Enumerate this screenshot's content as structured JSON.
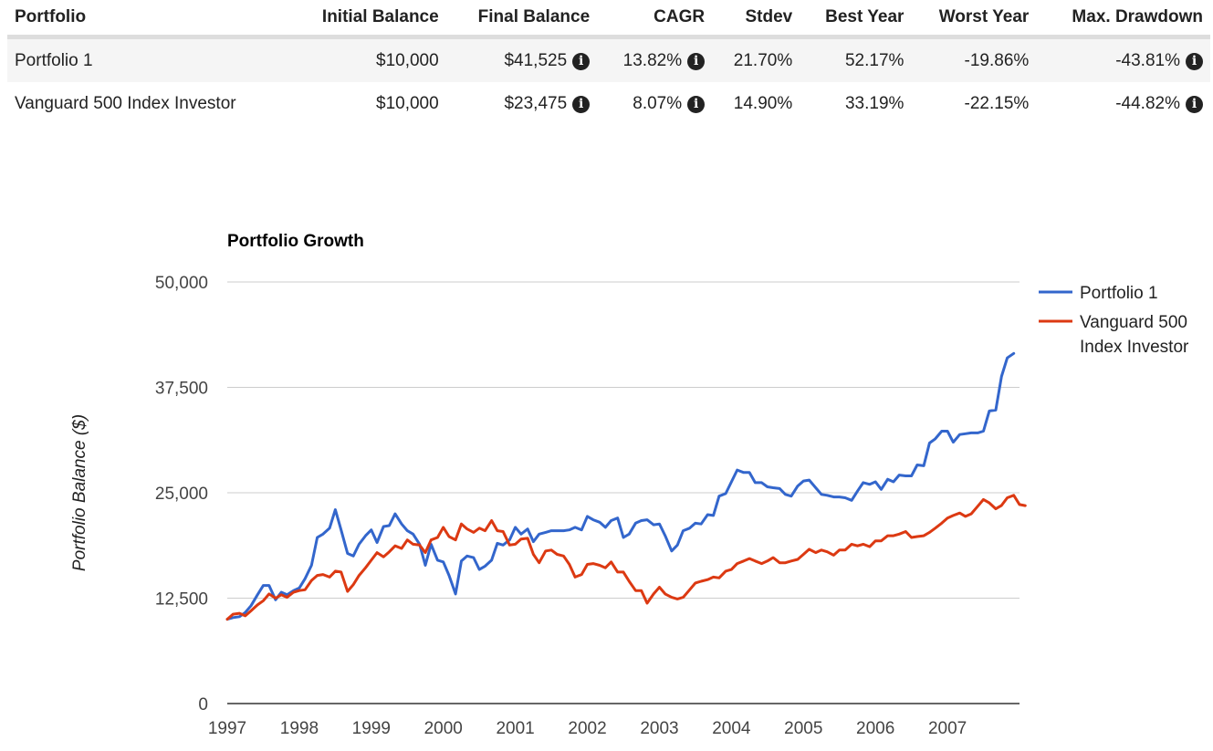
{
  "table": {
    "headers": [
      "Portfolio",
      "Initial Balance",
      "Final Balance",
      "CAGR",
      "Stdev",
      "Best Year",
      "Worst Year",
      "Max. Drawdown"
    ],
    "rows": [
      {
        "portfolio": "Portfolio 1",
        "initial_balance": "$10,000",
        "final_balance": "$41,525",
        "cagr": "13.82%",
        "stdev": "21.70%",
        "best_year": "52.17%",
        "worst_year": "-19.86%",
        "max_drawdown": "-43.81%"
      },
      {
        "portfolio": "Vanguard 500 Index Investor",
        "initial_balance": "$10,000",
        "final_balance": "$23,475",
        "cagr": "8.07%",
        "stdev": "14.90%",
        "best_year": "33.19%",
        "worst_year": "-22.15%",
        "max_drawdown": "-44.82%"
      }
    ],
    "info_icon": "info-circle-icon"
  },
  "colors": {
    "portfolio1": "#3366cc",
    "vanguard": "#dc3912",
    "grid": "#cccccc",
    "axis": "#333333"
  },
  "chart_data": {
    "type": "line",
    "title": "Portfolio Growth",
    "xlabel": "",
    "ylabel": "Portfolio Balance ($)",
    "ylim": [
      0,
      50000
    ],
    "xlim": [
      1997,
      2008
    ],
    "yticks": [
      0,
      12500,
      25000,
      37500,
      50000
    ],
    "ytick_labels": [
      "0",
      "12,500",
      "25,000",
      "37,500",
      "50,000"
    ],
    "xticks": [
      1997,
      1998,
      1999,
      2000,
      2001,
      2002,
      2003,
      2004,
      2005,
      2006,
      2007
    ],
    "xtick_labels": [
      "1997",
      "1998",
      "1999",
      "2000",
      "2001",
      "2002",
      "2003",
      "2004",
      "2005",
      "2006",
      "2007"
    ],
    "grid": true,
    "legend_position": "right",
    "series": [
      {
        "name": "Portfolio 1",
        "legend_lines": [
          "Portfolio 1"
        ],
        "color_key": "portfolio1",
        "points": [
          [
            1997.0,
            10000
          ],
          [
            1997.08,
            10200
          ],
          [
            1997.17,
            10300
          ],
          [
            1997.25,
            10800
          ],
          [
            1997.33,
            11600
          ],
          [
            1997.42,
            12900
          ],
          [
            1997.5,
            14000
          ],
          [
            1997.58,
            14000
          ],
          [
            1997.67,
            12300
          ],
          [
            1997.75,
            13200
          ],
          [
            1997.83,
            12900
          ],
          [
            1997.92,
            13400
          ],
          [
            1998.0,
            13700
          ],
          [
            1998.08,
            14800
          ],
          [
            1998.17,
            16400
          ],
          [
            1998.25,
            19700
          ],
          [
            1998.33,
            20100
          ],
          [
            1998.42,
            20800
          ],
          [
            1998.5,
            23000
          ],
          [
            1998.58,
            20600
          ],
          [
            1998.67,
            17800
          ],
          [
            1998.75,
            17500
          ],
          [
            1998.83,
            18900
          ],
          [
            1998.92,
            19900
          ],
          [
            1999.0,
            20600
          ],
          [
            1999.08,
            19100
          ],
          [
            1999.17,
            21000
          ],
          [
            1999.25,
            21100
          ],
          [
            1999.33,
            22500
          ],
          [
            1999.42,
            21300
          ],
          [
            1999.5,
            20500
          ],
          [
            1999.58,
            20100
          ],
          [
            1999.67,
            18900
          ],
          [
            1999.75,
            16400
          ],
          [
            1999.83,
            18900
          ],
          [
            1999.92,
            17000
          ],
          [
            2000.0,
            16800
          ],
          [
            2000.08,
            15200
          ],
          [
            2000.17,
            13000
          ],
          [
            2000.25,
            16900
          ],
          [
            2000.33,
            17500
          ],
          [
            2000.42,
            17300
          ],
          [
            2000.5,
            15900
          ],
          [
            2000.58,
            16300
          ],
          [
            2000.67,
            17000
          ],
          [
            2000.75,
            19000
          ],
          [
            2000.83,
            18800
          ],
          [
            2000.92,
            19400
          ],
          [
            2001.0,
            20900
          ],
          [
            2001.08,
            20100
          ],
          [
            2001.17,
            20700
          ],
          [
            2001.25,
            19200
          ],
          [
            2001.33,
            20100
          ],
          [
            2001.42,
            20300
          ],
          [
            2001.5,
            20500
          ],
          [
            2001.58,
            20500
          ],
          [
            2001.67,
            20500
          ],
          [
            2001.75,
            20600
          ],
          [
            2001.83,
            20900
          ],
          [
            2001.92,
            20600
          ],
          [
            2002.0,
            22200
          ],
          [
            2002.08,
            21800
          ],
          [
            2002.17,
            21500
          ],
          [
            2002.25,
            20900
          ],
          [
            2002.33,
            21700
          ],
          [
            2002.42,
            22000
          ],
          [
            2002.5,
            19700
          ],
          [
            2002.58,
            20100
          ],
          [
            2002.67,
            21400
          ],
          [
            2002.75,
            21700
          ],
          [
            2002.83,
            21800
          ],
          [
            2002.92,
            21200
          ],
          [
            2003.0,
            21300
          ],
          [
            2003.08,
            19900
          ],
          [
            2003.17,
            18100
          ],
          [
            2003.25,
            18800
          ],
          [
            2003.33,
            20500
          ],
          [
            2003.42,
            20800
          ],
          [
            2003.5,
            21400
          ],
          [
            2003.58,
            21300
          ],
          [
            2003.67,
            22400
          ],
          [
            2003.75,
            22300
          ],
          [
            2003.83,
            24600
          ],
          [
            2003.92,
            24900
          ],
          [
            2004.0,
            26300
          ],
          [
            2004.08,
            27700
          ],
          [
            2004.17,
            27400
          ],
          [
            2004.25,
            27400
          ],
          [
            2004.33,
            26200
          ],
          [
            2004.42,
            26200
          ],
          [
            2004.5,
            25700
          ],
          [
            2004.58,
            25600
          ],
          [
            2004.67,
            25500
          ],
          [
            2004.75,
            24800
          ],
          [
            2004.83,
            24600
          ],
          [
            2004.92,
            25800
          ],
          [
            2005.0,
            26400
          ],
          [
            2005.08,
            26500
          ],
          [
            2005.17,
            25600
          ],
          [
            2005.25,
            24800
          ],
          [
            2005.33,
            24700
          ],
          [
            2005.42,
            24500
          ],
          [
            2005.5,
            24500
          ],
          [
            2005.58,
            24400
          ],
          [
            2005.67,
            24100
          ],
          [
            2005.75,
            25200
          ],
          [
            2005.83,
            26200
          ],
          [
            2005.92,
            26000
          ],
          [
            2006.0,
            26300
          ],
          [
            2006.08,
            25400
          ],
          [
            2006.17,
            26600
          ],
          [
            2006.25,
            26300
          ],
          [
            2006.33,
            27100
          ],
          [
            2006.42,
            27000
          ],
          [
            2006.5,
            27000
          ],
          [
            2006.58,
            28300
          ],
          [
            2006.67,
            28200
          ],
          [
            2006.75,
            30900
          ],
          [
            2006.83,
            31400
          ],
          [
            2006.92,
            32300
          ],
          [
            2007.0,
            32300
          ],
          [
            2007.08,
            31000
          ],
          [
            2007.17,
            31900
          ],
          [
            2007.25,
            32000
          ],
          [
            2007.33,
            32100
          ],
          [
            2007.42,
            32100
          ],
          [
            2007.5,
            32300
          ],
          [
            2007.58,
            34700
          ],
          [
            2007.67,
            34800
          ],
          [
            2007.75,
            38800
          ],
          [
            2007.83,
            41000
          ],
          [
            2007.92,
            41525
          ]
        ]
      },
      {
        "name": "Vanguard 500 Index Investor",
        "legend_lines": [
          "Vanguard 500",
          "Index Investor"
        ],
        "color_key": "vanguard",
        "points": [
          [
            1997.0,
            10000
          ],
          [
            1997.08,
            10600
          ],
          [
            1997.17,
            10700
          ],
          [
            1997.25,
            10400
          ],
          [
            1997.33,
            11000
          ],
          [
            1997.42,
            11700
          ],
          [
            1997.5,
            12200
          ],
          [
            1997.58,
            13000
          ],
          [
            1997.67,
            12500
          ],
          [
            1997.75,
            12900
          ],
          [
            1997.83,
            12600
          ],
          [
            1997.92,
            13200
          ],
          [
            1998.0,
            13400
          ],
          [
            1998.08,
            13500
          ],
          [
            1998.17,
            14600
          ],
          [
            1998.25,
            15200
          ],
          [
            1998.33,
            15300
          ],
          [
            1998.42,
            15000
          ],
          [
            1998.5,
            15700
          ],
          [
            1998.58,
            15600
          ],
          [
            1998.67,
            13300
          ],
          [
            1998.75,
            14100
          ],
          [
            1998.83,
            15200
          ],
          [
            1998.92,
            16100
          ],
          [
            1999.0,
            17000
          ],
          [
            1999.08,
            17900
          ],
          [
            1999.17,
            17400
          ],
          [
            1999.25,
            18000
          ],
          [
            1999.33,
            18700
          ],
          [
            1999.42,
            18400
          ],
          [
            1999.5,
            19400
          ],
          [
            1999.58,
            18900
          ],
          [
            1999.67,
            18800
          ],
          [
            1999.75,
            17900
          ],
          [
            1999.83,
            19400
          ],
          [
            1999.92,
            19700
          ],
          [
            2000.0,
            20900
          ],
          [
            2000.08,
            19800
          ],
          [
            2000.17,
            19400
          ],
          [
            2000.25,
            21300
          ],
          [
            2000.33,
            20700
          ],
          [
            2000.42,
            20300
          ],
          [
            2000.5,
            20800
          ],
          [
            2000.58,
            20500
          ],
          [
            2000.67,
            21700
          ],
          [
            2000.75,
            20500
          ],
          [
            2000.83,
            20400
          ],
          [
            2000.92,
            18800
          ],
          [
            2001.0,
            18900
          ],
          [
            2001.08,
            19500
          ],
          [
            2001.17,
            19600
          ],
          [
            2001.25,
            17700
          ],
          [
            2001.33,
            16700
          ],
          [
            2001.42,
            18100
          ],
          [
            2001.5,
            18200
          ],
          [
            2001.58,
            17700
          ],
          [
            2001.67,
            17500
          ],
          [
            2001.75,
            16500
          ],
          [
            2001.83,
            15000
          ],
          [
            2001.92,
            15300
          ],
          [
            2002.0,
            16500
          ],
          [
            2002.08,
            16600
          ],
          [
            2002.17,
            16400
          ],
          [
            2002.25,
            16100
          ],
          [
            2002.33,
            16800
          ],
          [
            2002.42,
            15600
          ],
          [
            2002.5,
            15600
          ],
          [
            2002.58,
            14500
          ],
          [
            2002.67,
            13400
          ],
          [
            2002.75,
            13400
          ],
          [
            2002.83,
            11900
          ],
          [
            2002.92,
            13000
          ],
          [
            2003.0,
            13800
          ],
          [
            2003.08,
            13000
          ],
          [
            2003.17,
            12600
          ],
          [
            2003.25,
            12400
          ],
          [
            2003.33,
            12600
          ],
          [
            2003.42,
            13500
          ],
          [
            2003.5,
            14300
          ],
          [
            2003.58,
            14500
          ],
          [
            2003.67,
            14700
          ],
          [
            2003.75,
            15000
          ],
          [
            2003.83,
            14900
          ],
          [
            2003.92,
            15700
          ],
          [
            2004.0,
            15900
          ],
          [
            2004.08,
            16600
          ],
          [
            2004.17,
            16900
          ],
          [
            2004.25,
            17200
          ],
          [
            2004.33,
            16900
          ],
          [
            2004.42,
            16600
          ],
          [
            2004.5,
            16900
          ],
          [
            2004.58,
            17300
          ],
          [
            2004.67,
            16700
          ],
          [
            2004.75,
            16700
          ],
          [
            2004.83,
            16900
          ],
          [
            2004.92,
            17100
          ],
          [
            2005.0,
            17700
          ],
          [
            2005.08,
            18300
          ],
          [
            2005.17,
            17900
          ],
          [
            2005.25,
            18200
          ],
          [
            2005.33,
            18000
          ],
          [
            2005.42,
            17600
          ],
          [
            2005.5,
            18200
          ],
          [
            2005.58,
            18200
          ],
          [
            2005.67,
            18900
          ],
          [
            2005.75,
            18700
          ],
          [
            2005.83,
            18900
          ],
          [
            2005.92,
            18600
          ],
          [
            2006.0,
            19300
          ],
          [
            2006.08,
            19300
          ],
          [
            2006.17,
            19900
          ],
          [
            2006.25,
            19900
          ],
          [
            2006.33,
            20100
          ],
          [
            2006.42,
            20400
          ],
          [
            2006.5,
            19700
          ],
          [
            2006.58,
            19800
          ],
          [
            2006.67,
            19900
          ],
          [
            2006.75,
            20300
          ],
          [
            2006.83,
            20800
          ],
          [
            2006.92,
            21400
          ],
          [
            2007.0,
            22000
          ],
          [
            2007.08,
            22300
          ],
          [
            2007.17,
            22600
          ],
          [
            2007.25,
            22200
          ],
          [
            2007.33,
            22500
          ],
          [
            2007.42,
            23400
          ],
          [
            2007.5,
            24200
          ],
          [
            2007.58,
            23800
          ],
          [
            2007.67,
            23100
          ],
          [
            2007.75,
            23500
          ],
          [
            2007.83,
            24400
          ],
          [
            2007.92,
            24700
          ],
          [
            2008.0,
            23600
          ],
          [
            2008.08,
            23475
          ]
        ]
      }
    ]
  }
}
